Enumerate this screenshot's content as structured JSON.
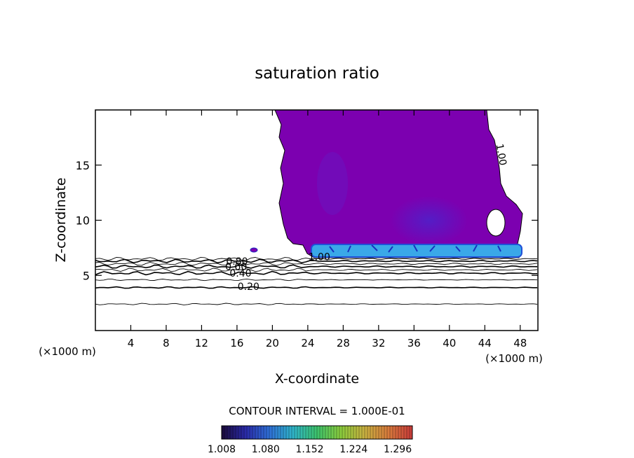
{
  "chart_data": {
    "type": "contour",
    "title": "saturation ratio",
    "xlabel": "X-coordinate",
    "ylabel": "Z-coordinate",
    "x_unit_label": "(×1000 m)",
    "x_unit_label_right": "(×1000 m)",
    "xlim": [
      0,
      50
    ],
    "ylim": [
      0,
      20
    ],
    "x_ticks": [
      4,
      8,
      12,
      16,
      20,
      24,
      28,
      32,
      36,
      40,
      44,
      48
    ],
    "y_ticks": [
      5,
      10,
      15
    ],
    "contour_interval_text": "CONTOUR INTERVAL = 1.000E-01",
    "contour_lines": [
      {
        "label": "0.20",
        "z": 4.0,
        "label_x": 17.3
      },
      {
        "label": "0.40",
        "z": 5.2,
        "label_x": 16.4
      },
      {
        "label": "0.60",
        "z": 5.8,
        "label_x": 15.9
      },
      {
        "label": "0.80",
        "z": 6.3,
        "label_x": 16.0
      },
      {
        "label": "1.00",
        "z": 6.7,
        "label_x": 25.3
      }
    ],
    "upper_contour_label": {
      "label": "1.00",
      "x": 45.5,
      "z": 15.9
    },
    "colorbar": {
      "tick_labels": [
        "1.008",
        "1.080",
        "1.152",
        "1.224",
        "1.296"
      ],
      "min": 1.008,
      "max": 1.32,
      "colors": [
        "#1a0a3a",
        "#2a2aa8",
        "#2f6fd6",
        "#2fb4c8",
        "#3cc26c",
        "#8acb3c",
        "#c8b040",
        "#d87a3c",
        "#c83a3a"
      ]
    },
    "fill_colors": {
      "saturated": "#7c00b0",
      "core": "#6a18c0",
      "band": "#3aa8e8",
      "band_edge": "#2050d8"
    }
  }
}
